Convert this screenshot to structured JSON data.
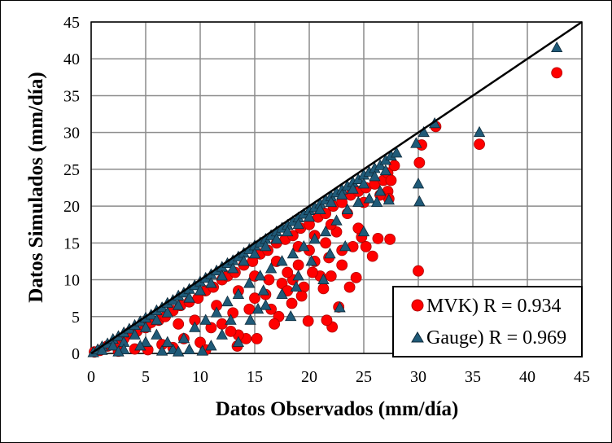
{
  "chart_data": {
    "type": "scatter",
    "title": "",
    "xlabel": "Datos Observados (mm/día)",
    "ylabel": "Datos Simulados (mm/día)",
    "xlim": [
      0,
      45
    ],
    "ylim": [
      0,
      45
    ],
    "xticks": [
      0,
      5,
      10,
      15,
      20,
      25,
      30,
      35,
      40,
      45
    ],
    "yticks": [
      0,
      5,
      10,
      15,
      20,
      25,
      30,
      35,
      40,
      45
    ],
    "grid": true,
    "reference_line": {
      "name": "1:1",
      "x": [
        0,
        45
      ],
      "y": [
        0,
        45
      ],
      "color": "#000000"
    },
    "legend_position": "bottom-right",
    "series": [
      {
        "name": "MVK) R = 0.934",
        "marker": "circle",
        "color": "#ff0000",
        "points": [
          [
            0.3,
            0.2
          ],
          [
            0.8,
            0.4
          ],
          [
            1.5,
            1.0
          ],
          [
            2.2,
            1.5
          ],
          [
            3.0,
            2.0
          ],
          [
            3.5,
            2.8
          ],
          [
            4.2,
            3.0
          ],
          [
            5.0,
            3.5
          ],
          [
            5.5,
            4.2
          ],
          [
            6.2,
            4.5
          ],
          [
            6.8,
            5.0
          ],
          [
            7.5,
            5.8
          ],
          [
            8.2,
            6.5
          ],
          [
            9.0,
            7.0
          ],
          [
            9.8,
            7.5
          ],
          [
            10.5,
            8.5
          ],
          [
            11.2,
            9.0
          ],
          [
            12.0,
            10.0
          ],
          [
            12.5,
            10.5
          ],
          [
            13.2,
            11.0
          ],
          [
            14.0,
            12.0
          ],
          [
            14.8,
            12.5
          ],
          [
            15.5,
            13.5
          ],
          [
            16.2,
            14.0
          ],
          [
            17.0,
            15.0
          ],
          [
            17.8,
            15.5
          ],
          [
            18.5,
            16.0
          ],
          [
            19.2,
            17.0
          ],
          [
            20.0,
            17.5
          ],
          [
            20.8,
            18.5
          ],
          [
            21.5,
            19.0
          ],
          [
            22.2,
            20.0
          ],
          [
            23.0,
            20.5
          ],
          [
            23.8,
            21.5
          ],
          [
            24.5,
            22.0
          ],
          [
            25.2,
            22.5
          ],
          [
            26.0,
            23.0
          ],
          [
            26.8,
            23.5
          ],
          [
            27.2,
            24.5
          ],
          [
            27.8,
            25.5
          ],
          [
            27.5,
            23.5
          ],
          [
            27.2,
            22.0
          ],
          [
            27.3,
            21.0
          ],
          [
            27.4,
            15.5
          ],
          [
            26.3,
            15.6
          ],
          [
            25.2,
            14.5
          ],
          [
            25.8,
            13.2
          ],
          [
            24.3,
            10.3
          ],
          [
            23.7,
            9.0
          ],
          [
            22.7,
            6.3
          ],
          [
            22.1,
            3.6
          ],
          [
            21.6,
            4.5
          ],
          [
            19.9,
            4.4
          ],
          [
            18.4,
            6.8
          ],
          [
            17.2,
            5.0
          ],
          [
            16.8,
            4.0
          ],
          [
            15.2,
            2.0
          ],
          [
            14.2,
            2.0
          ],
          [
            13.5,
            2.5
          ],
          [
            13.4,
            1.0
          ],
          [
            12.8,
            3.0
          ],
          [
            10.5,
            0.5
          ],
          [
            10.0,
            1.5
          ],
          [
            8.5,
            2.0
          ],
          [
            7.5,
            0.8
          ],
          [
            6.5,
            1.2
          ],
          [
            5.2,
            0.5
          ],
          [
            4.0,
            0.6
          ],
          [
            2.5,
            0.3
          ],
          [
            16.5,
            6.0
          ],
          [
            18.5,
            10.0
          ],
          [
            19.5,
            9.0
          ],
          [
            20.5,
            12.5
          ],
          [
            21.0,
            10.5
          ],
          [
            21.3,
            8.8
          ],
          [
            22.0,
            10.5
          ],
          [
            23.0,
            12.0
          ],
          [
            24.0,
            14.5
          ],
          [
            24.8,
            15.8
          ],
          [
            22.5,
            16.5
          ],
          [
            21.5,
            15.0
          ],
          [
            20.0,
            14.0
          ],
          [
            19.0,
            12.0
          ],
          [
            18.0,
            11.0
          ],
          [
            17.5,
            9.5
          ],
          [
            16.0,
            8.0
          ],
          [
            15.0,
            7.5
          ],
          [
            14.5,
            6.0
          ],
          [
            13.0,
            5.5
          ],
          [
            12.0,
            4.0
          ],
          [
            11.0,
            3.5
          ],
          [
            9.5,
            4.5
          ],
          [
            8.0,
            4.0
          ],
          [
            11.5,
            6.5
          ],
          [
            13.5,
            8.5
          ],
          [
            15.0,
            10.5
          ],
          [
            17.0,
            12.5
          ],
          [
            19.0,
            14.5
          ],
          [
            20.5,
            16.0
          ],
          [
            22.0,
            17.5
          ],
          [
            23.5,
            19.0
          ],
          [
            25.0,
            20.5
          ],
          [
            26.5,
            21.5
          ],
          [
            24.5,
            17.0
          ],
          [
            23.0,
            14.0
          ],
          [
            21.8,
            13.0
          ],
          [
            20.3,
            11.0
          ],
          [
            19.3,
            7.8
          ],
          [
            18.0,
            8.5
          ],
          [
            16.3,
            10.0
          ],
          [
            30.0,
            11.2
          ],
          [
            30.1,
            25.9
          ],
          [
            30.3,
            28.3
          ],
          [
            31.6,
            30.8
          ],
          [
            35.6,
            28.4
          ],
          [
            42.7,
            38.1
          ]
        ]
      },
      {
        "name": "Gauge) R = 0.969",
        "marker": "triangle",
        "color": "#1f5a78",
        "points": [
          [
            0.2,
            0.1
          ],
          [
            0.6,
            0.5
          ],
          [
            1.0,
            0.9
          ],
          [
            1.5,
            1.3
          ],
          [
            2.0,
            1.9
          ],
          [
            2.5,
            2.3
          ],
          [
            3.0,
            2.8
          ],
          [
            3.5,
            3.3
          ],
          [
            4.0,
            3.8
          ],
          [
            4.5,
            4.3
          ],
          [
            5.0,
            4.8
          ],
          [
            5.5,
            5.2
          ],
          [
            6.0,
            5.8
          ],
          [
            6.5,
            6.2
          ],
          [
            7.0,
            6.8
          ],
          [
            7.5,
            7.2
          ],
          [
            8.0,
            7.8
          ],
          [
            8.5,
            8.2
          ],
          [
            9.0,
            8.7
          ],
          [
            9.5,
            9.2
          ],
          [
            10.0,
            9.7
          ],
          [
            10.5,
            10.2
          ],
          [
            11.0,
            10.7
          ],
          [
            11.5,
            11.2
          ],
          [
            12.0,
            11.7
          ],
          [
            12.5,
            12.2
          ],
          [
            13.0,
            12.6
          ],
          [
            13.5,
            13.1
          ],
          [
            14.0,
            13.6
          ],
          [
            14.5,
            14.1
          ],
          [
            15.0,
            14.6
          ],
          [
            15.5,
            15.0
          ],
          [
            16.0,
            15.5
          ],
          [
            16.5,
            16.0
          ],
          [
            17.0,
            16.5
          ],
          [
            17.5,
            17.0
          ],
          [
            18.0,
            17.4
          ],
          [
            18.5,
            17.9
          ],
          [
            19.0,
            18.4
          ],
          [
            19.5,
            18.9
          ],
          [
            20.0,
            19.4
          ],
          [
            20.5,
            19.8
          ],
          [
            21.0,
            20.3
          ],
          [
            21.5,
            20.8
          ],
          [
            22.0,
            21.3
          ],
          [
            22.5,
            21.8
          ],
          [
            23.0,
            22.2
          ],
          [
            23.5,
            22.7
          ],
          [
            24.0,
            23.2
          ],
          [
            24.5,
            23.6
          ],
          [
            25.0,
            24.2
          ],
          [
            25.5,
            24.6
          ],
          [
            26.0,
            25.1
          ],
          [
            26.5,
            25.5
          ],
          [
            27.0,
            26.2
          ],
          [
            27.5,
            26.8
          ],
          [
            28.0,
            27.2
          ],
          [
            1.0,
            0.4
          ],
          [
            2.0,
            1.0
          ],
          [
            3.0,
            1.5
          ],
          [
            4.0,
            2.5
          ],
          [
            5.0,
            3.5
          ],
          [
            6.0,
            4.5
          ],
          [
            7.0,
            5.5
          ],
          [
            8.0,
            6.5
          ],
          [
            9.0,
            7.5
          ],
          [
            10.0,
            8.5
          ],
          [
            11.0,
            9.5
          ],
          [
            12.0,
            10.5
          ],
          [
            13.0,
            11.5
          ],
          [
            14.0,
            12.5
          ],
          [
            15.0,
            13.5
          ],
          [
            16.0,
            14.5
          ],
          [
            17.0,
            15.5
          ],
          [
            18.0,
            16.5
          ],
          [
            19.0,
            17.5
          ],
          [
            20.0,
            18.5
          ],
          [
            21.0,
            19.5
          ],
          [
            22.0,
            20.5
          ],
          [
            23.0,
            21.5
          ],
          [
            24.0,
            22.3
          ],
          [
            25.0,
            23.0
          ],
          [
            26.0,
            24.0
          ],
          [
            27.0,
            24.8
          ],
          [
            3.0,
            0.5
          ],
          [
            5.0,
            1.5
          ],
          [
            6.5,
            0.3
          ],
          [
            7.5,
            0.5
          ],
          [
            8.5,
            2.0
          ],
          [
            9.5,
            3.5
          ],
          [
            10.5,
            4.5
          ],
          [
            11.5,
            5.5
          ],
          [
            12.5,
            7.0
          ],
          [
            13.5,
            8.0
          ],
          [
            14.5,
            9.5
          ],
          [
            15.5,
            10.5
          ],
          [
            16.5,
            11.5
          ],
          [
            17.5,
            12.5
          ],
          [
            18.5,
            13.5
          ],
          [
            19.5,
            14.5
          ],
          [
            20.5,
            15.5
          ],
          [
            21.5,
            16.5
          ],
          [
            22.5,
            18.0
          ],
          [
            23.5,
            19.5
          ],
          [
            24.5,
            20.5
          ],
          [
            25.5,
            21.0
          ],
          [
            26.5,
            22.0
          ],
          [
            27.3,
            20.8
          ],
          [
            26.2,
            20.5
          ],
          [
            25.0,
            16.5
          ],
          [
            23.3,
            14.5
          ],
          [
            22.8,
            6.2
          ],
          [
            21.9,
            13.5
          ],
          [
            20.2,
            12.5
          ],
          [
            19.0,
            10.5
          ],
          [
            18.3,
            5.0
          ],
          [
            17.5,
            8.0
          ],
          [
            16.0,
            6.5
          ],
          [
            15.3,
            6.0
          ],
          [
            14.6,
            4.5
          ],
          [
            13.5,
            1.5
          ],
          [
            12.0,
            2.5
          ],
          [
            11.0,
            1.0
          ],
          [
            9.0,
            0.5
          ],
          [
            8.0,
            0.2
          ],
          [
            7.0,
            1.5
          ],
          [
            6.0,
            2.5
          ],
          [
            4.5,
            1.0
          ],
          [
            2.5,
            0.2
          ],
          [
            10.2,
            0.3
          ],
          [
            12.8,
            4.5
          ],
          [
            15.8,
            8.5
          ],
          [
            18.8,
            9.0
          ],
          [
            21.3,
            10.0
          ],
          [
            30.0,
            23.0
          ],
          [
            30.1,
            20.6
          ],
          [
            29.8,
            28.5
          ],
          [
            30.5,
            30.0
          ],
          [
            31.5,
            31.2
          ],
          [
            35.6,
            30.0
          ],
          [
            42.7,
            41.5
          ]
        ]
      }
    ]
  }
}
